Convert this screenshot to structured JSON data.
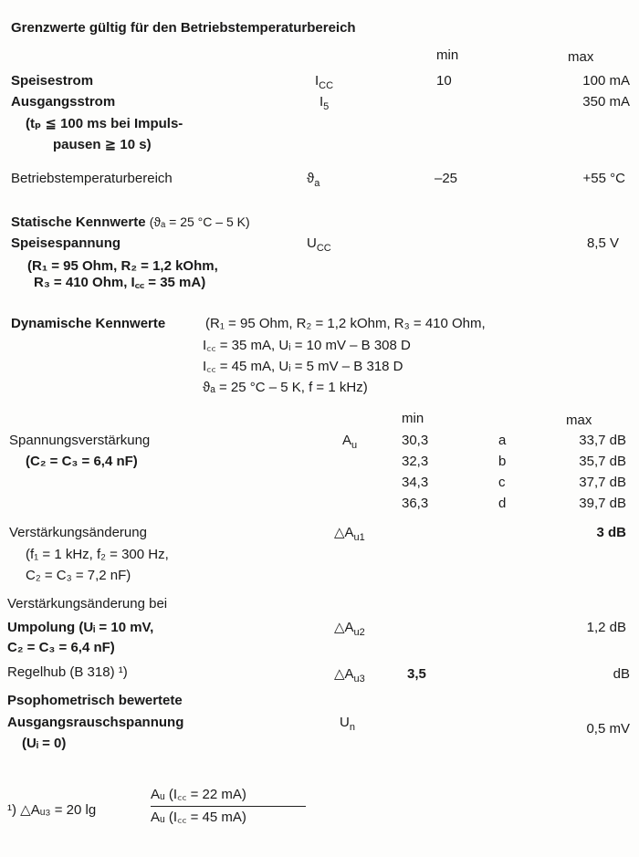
{
  "title": "Grenzwerte gültig für den Betriebstemperaturbereich",
  "limits": {
    "col_min": "min",
    "col_max": "max",
    "rows": [
      {
        "label": "Speisestrom",
        "sym": "I",
        "sub": "CC",
        "min": "10",
        "max": "100 mA"
      },
      {
        "label": "Ausgangsstrom",
        "sym": "I",
        "sub": "5",
        "min": "",
        "max": "350 mA",
        "note1": "(tₚ ≦ 100 ms bei Impuls-",
        "note2": "pausen ≧ 10 s)"
      },
      {
        "label": "Betriebstemperaturbereich",
        "sym": "ϑ",
        "sub": "a",
        "min": "–25",
        "max": "+55 °C"
      }
    ]
  },
  "static": {
    "heading": "Statische Kennwerte",
    "cond": "(ϑₐ = 25 °C – 5 K)",
    "label": "Speisespannung",
    "sym": "U",
    "sub": "CC",
    "max": "8,5 V",
    "note1": "(R₁ = 95 Ohm, R₂ = 1,2 kOhm,",
    "note2": "R₃ = 410 Ohm, I꜀꜀ = 35 mA)"
  },
  "dynamic": {
    "heading": "Dynamische Kennwerte",
    "cond": [
      "(R₁ = 95 Ohm, R₂ = 1,2 kOhm, R₃ = 410 Ohm,",
      "I꜀꜀ = 35 mA, Uᵢ = 10 mV – B 308 D",
      "I꜀꜀ = 45 mA, Uᵢ =  5 mV – B 318 D",
      "ϑₐ = 25 °C – 5 K, f = 1 kHz)"
    ],
    "col_min": "min",
    "col_max": "max",
    "gain": {
      "label": "Spannungsverstärkung",
      "note": "(C₂ = C₃ = 6,4 nF)",
      "sym": "A",
      "sub": "u",
      "rows": [
        {
          "min": "30,3",
          "group": "a",
          "max": "33,7 dB"
        },
        {
          "min": "32,3",
          "group": "b",
          "max": "35,7 dB"
        },
        {
          "min": "34,3",
          "group": "c",
          "max": "37,7 dB"
        },
        {
          "min": "36,3",
          "group": "d",
          "max": "39,7 dB"
        }
      ]
    },
    "change1": {
      "label": "Verstärkungsänderung",
      "note1": "(f₁ = 1 kHz, f₂ = 300 Hz,",
      "note2": "C₂ = C₃ = 7,2 nF)",
      "sym": "△A",
      "sub": "u1",
      "max": "3 dB"
    },
    "change2": {
      "label1": "Verstärkungsänderung bei",
      "label2": "Umpolung (Uᵢ = 10 mV,",
      "label3": "C₂ = C₃ = 6,4 nF)",
      "sym": "△A",
      "sub": "u2",
      "max": "1,2 dB"
    },
    "regel": {
      "label": "Regelhub (B 318) ¹)",
      "sym": "△A",
      "sub": "u3",
      "min": "3,5",
      "max": "dB"
    },
    "noise": {
      "label1": "Psophometrisch bewertete",
      "label2": "Ausgangsrauschspannung",
      "label3": "(Uᵢ = 0)",
      "sym": "U",
      "sub": "n",
      "max": "0,5 mV"
    }
  },
  "footnote": {
    "lhs": "¹)  △Aᵤ₃ = 20 lg",
    "num": "Aᵤ (I꜀꜀ = 22 mA)",
    "den": "Aᵤ (I꜀꜀ = 45 mA)"
  }
}
